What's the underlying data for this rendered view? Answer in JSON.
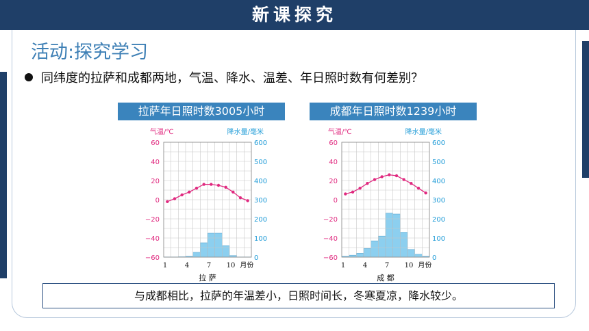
{
  "header": {
    "title": "新课探究"
  },
  "section": {
    "title": "活动:探究学习"
  },
  "question": {
    "text": "同纬度的拉萨和成都两地，气温、降水、温差、年日照时数有何差别？"
  },
  "charts": [
    {
      "banner": "拉萨年日照时数3005小时",
      "city_label": "拉  萨",
      "left_axis_label": "气温/℃",
      "right_axis_label": "降水量/毫米",
      "x_ticks": [
        "1",
        "4",
        "7",
        "10"
      ],
      "x_unit": "月份",
      "left_ticks": [
        "60",
        "40",
        "20",
        "0",
        "−20",
        "−40",
        "−60"
      ],
      "right_ticks": [
        "600",
        "500",
        "400",
        "300",
        "200",
        "100",
        "0"
      ]
    },
    {
      "banner": "成都年日照时数1239小时",
      "city_label": "成  都",
      "left_axis_label": "气温/℃",
      "right_axis_label": "降水量/毫米",
      "x_ticks": [
        "1",
        "4",
        "7",
        "10"
      ],
      "x_unit": "月份",
      "left_ticks": [
        "60",
        "40",
        "20",
        "0",
        "−20",
        "−40",
        "−60"
      ],
      "right_ticks": [
        "600",
        "500",
        "400",
        "300",
        "200",
        "100",
        "0"
      ]
    }
  ],
  "chart_data": [
    {
      "type": "bar+line",
      "title": "拉萨年日照时数3005小时",
      "categories": [
        "1",
        "2",
        "3",
        "4",
        "5",
        "6",
        "7",
        "8",
        "9",
        "10",
        "11",
        "12"
      ],
      "series": [
        {
          "name": "气温/℃",
          "type": "line",
          "values": [
            -2,
            1,
            5,
            8,
            12,
            16,
            16,
            15,
            13,
            8,
            2,
            -1
          ]
        },
        {
          "name": "降水量/毫米",
          "type": "bar",
          "values": [
            1,
            1,
            2,
            5,
            25,
            75,
            125,
            125,
            60,
            8,
            1,
            1
          ]
        }
      ],
      "ylim_left": [
        -60,
        60
      ],
      "ylim_right": [
        0,
        600
      ],
      "grid": true,
      "xlabel": "月份",
      "ylabel_left": "气温/℃",
      "ylabel_right": "降水量/毫米"
    },
    {
      "type": "bar+line",
      "title": "成都年日照时数1239小时",
      "categories": [
        "1",
        "2",
        "3",
        "4",
        "5",
        "6",
        "7",
        "8",
        "9",
        "10",
        "11",
        "12"
      ],
      "series": [
        {
          "name": "气温/℃",
          "type": "line",
          "values": [
            6,
            8,
            12,
            17,
            21,
            24,
            26,
            25,
            21,
            17,
            12,
            7
          ]
        },
        {
          "name": "降水量/毫米",
          "type": "bar",
          "values": [
            5,
            10,
            20,
            45,
            85,
            110,
            230,
            225,
            130,
            40,
            15,
            5
          ]
        }
      ],
      "ylim_left": [
        -60,
        60
      ],
      "ylim_right": [
        0,
        600
      ],
      "grid": true,
      "xlabel": "月份",
      "ylabel_left": "气温/℃",
      "ylabel_right": "降水量/毫米"
    }
  ],
  "conclusion": {
    "text": "与成都相比，拉萨的年温差小，日照时间长，冬寒夏凉，降水较少。"
  },
  "colors": {
    "header": "#1f3f68",
    "temperature": "#e0297f",
    "precipitation": "#8ccfef",
    "axis_right": "#1e9bd7",
    "banner": "#3a84bd"
  }
}
